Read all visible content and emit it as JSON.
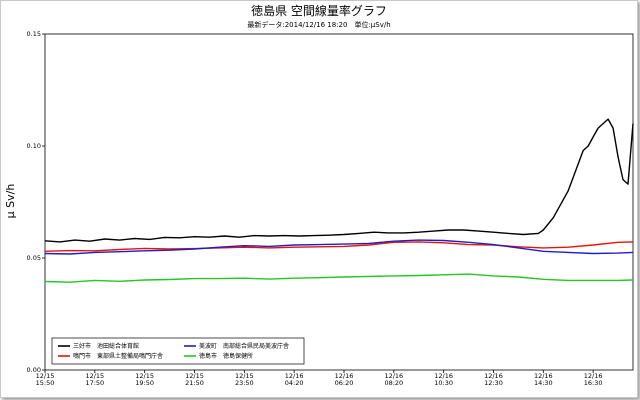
{
  "chart_data": {
    "type": "line",
    "title": "徳島県 空間線量率グラフ",
    "subtitle": "最新データ:2014/12/16 18:20　単位:μSv/h",
    "ylabel": "μ Sv/h",
    "xlabel": "",
    "ylim": [
      0,
      0.15
    ],
    "yticks": [
      "0.00",
      "0.05",
      "0.10",
      "0.15"
    ],
    "grid": true,
    "legend_position": "bottom-left",
    "xticks": [
      {
        "date": "12/15",
        "time": "15:50"
      },
      {
        "date": "12/15",
        "time": "17:50"
      },
      {
        "date": "12/15",
        "time": "19:50"
      },
      {
        "date": "12/15",
        "time": "21:50"
      },
      {
        "date": "12/15",
        "time": "23:50"
      },
      {
        "date": "12/16",
        "time": "04:20"
      },
      {
        "date": "12/16",
        "time": "06:20"
      },
      {
        "date": "12/16",
        "time": "08:20"
      },
      {
        "date": "12/16",
        "time": "10:30"
      },
      {
        "date": "12/16",
        "time": "12:30"
      },
      {
        "date": "12/16",
        "time": "14:30"
      },
      {
        "date": "12/16",
        "time": "16:30"
      }
    ],
    "x_range": [
      0,
      11.8
    ],
    "series": [
      {
        "name": "三好市　池田総合体育館",
        "color": "#000000",
        "x": [
          0,
          0.3,
          0.6,
          0.9,
          1.2,
          1.5,
          1.8,
          2.1,
          2.4,
          2.7,
          3.0,
          3.3,
          3.6,
          3.9,
          4.2,
          4.5,
          4.8,
          5.1,
          5.4,
          5.7,
          6.0,
          6.3,
          6.6,
          6.9,
          7.2,
          7.5,
          7.8,
          8.1,
          8.4,
          8.7,
          9.0,
          9.3,
          9.6,
          9.9,
          10.0,
          10.2,
          10.4,
          10.5,
          10.6,
          10.7,
          10.8,
          10.9,
          11.0,
          11.1,
          11.2,
          11.3,
          11.4,
          11.5,
          11.6,
          11.7,
          11.8
        ],
        "y": [
          0.0577,
          0.0572,
          0.058,
          0.0575,
          0.0585,
          0.058,
          0.0587,
          0.0583,
          0.0592,
          0.059,
          0.0595,
          0.0593,
          0.0598,
          0.0593,
          0.06,
          0.0598,
          0.06,
          0.0598,
          0.06,
          0.0602,
          0.0605,
          0.061,
          0.0615,
          0.0612,
          0.0612,
          0.0615,
          0.062,
          0.0625,
          0.0625,
          0.062,
          0.0615,
          0.061,
          0.0605,
          0.061,
          0.0625,
          0.068,
          0.076,
          0.08,
          0.086,
          0.092,
          0.098,
          0.1,
          0.104,
          0.108,
          0.11,
          0.112,
          0.108,
          0.095,
          0.085,
          0.083,
          0.11
        ]
      },
      {
        "name": "鳴門市　東部県土整備局鳴門庁舎",
        "color": "#e8140c",
        "x": [
          0,
          0.5,
          1.0,
          1.5,
          2.0,
          2.5,
          3.0,
          3.5,
          4.0,
          4.5,
          5.0,
          5.5,
          6.0,
          6.5,
          7.0,
          7.5,
          8.0,
          8.5,
          9.0,
          9.5,
          10.0,
          10.5,
          11.0,
          11.5,
          11.8
        ],
        "y": [
          0.053,
          0.0533,
          0.0532,
          0.0538,
          0.0543,
          0.054,
          0.0542,
          0.0545,
          0.0548,
          0.0545,
          0.0548,
          0.055,
          0.0552,
          0.0558,
          0.057,
          0.0572,
          0.0568,
          0.056,
          0.0558,
          0.055,
          0.0545,
          0.0548,
          0.0558,
          0.057,
          0.0572
        ]
      },
      {
        "name": "美波町　南部総合県民局美波庁舎",
        "color": "#1e1ec8",
        "x": [
          0,
          0.5,
          1.0,
          1.5,
          2.0,
          2.5,
          3.0,
          3.5,
          4.0,
          4.5,
          5.0,
          5.5,
          6.0,
          6.5,
          7.0,
          7.5,
          8.0,
          8.5,
          9.0,
          9.5,
          10.0,
          10.5,
          11.0,
          11.5,
          11.8
        ],
        "y": [
          0.052,
          0.0518,
          0.0525,
          0.0528,
          0.0532,
          0.0535,
          0.054,
          0.0548,
          0.0555,
          0.0552,
          0.0558,
          0.056,
          0.0562,
          0.0565,
          0.0575,
          0.058,
          0.0578,
          0.057,
          0.056,
          0.0545,
          0.053,
          0.0525,
          0.052,
          0.0522,
          0.0525
        ]
      },
      {
        "name": "徳島市　徳島保健所",
        "color": "#22c81e",
        "x": [
          0,
          0.5,
          1.0,
          1.5,
          2.0,
          2.5,
          3.0,
          3.5,
          4.0,
          4.5,
          5.0,
          5.5,
          6.0,
          6.5,
          7.0,
          7.5,
          8.0,
          8.5,
          9.0,
          9.5,
          10.0,
          10.5,
          11.0,
          11.5,
          11.8
        ],
        "y": [
          0.0395,
          0.0392,
          0.04,
          0.0396,
          0.0402,
          0.0404,
          0.0408,
          0.0408,
          0.041,
          0.0406,
          0.041,
          0.0412,
          0.0415,
          0.0418,
          0.042,
          0.0422,
          0.0425,
          0.0428,
          0.042,
          0.0415,
          0.0405,
          0.04,
          0.04,
          0.04,
          0.0402
        ]
      }
    ]
  }
}
